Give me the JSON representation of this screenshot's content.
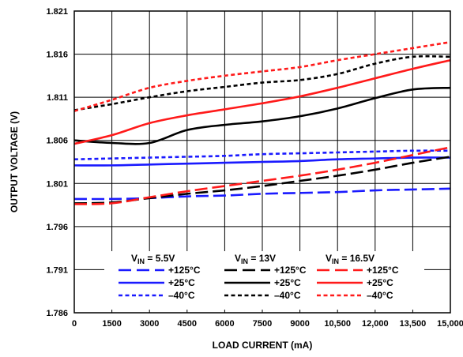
{
  "chart_data": {
    "type": "line",
    "xlabel": "LOAD CURRENT (mA)",
    "ylabel": "OUTPUT VOLTAGE (V)",
    "xlim": [
      0,
      15000
    ],
    "ylim": [
      1.786,
      1.821
    ],
    "x_ticks": [
      0,
      1500,
      3000,
      4500,
      6000,
      7500,
      9000,
      10500,
      12000,
      13500,
      15000
    ],
    "x_tick_labels": [
      "0",
      "1500",
      "3000",
      "4500",
      "6000",
      "7500",
      "9000",
      "10,500",
      "12,000",
      "13,500",
      "15,000"
    ],
    "y_ticks": [
      1.786,
      1.791,
      1.796,
      1.801,
      1.806,
      1.811,
      1.816,
      1.821
    ],
    "y_tick_labels": [
      "1.786",
      "1.791",
      "1.796",
      "1.801",
      "1.806",
      "1.811",
      "1.816",
      "1.821"
    ],
    "grid": true,
    "legend_position": "bottom-center",
    "legend_groups": [
      {
        "vin_prefix": "V",
        "vin_sub": "IN",
        "vin_suffix": " = 5.5V",
        "color": "#1a1aff"
      },
      {
        "vin_prefix": "V",
        "vin_sub": "IN",
        "vin_suffix": " = 13V",
        "color": "#000000"
      },
      {
        "vin_prefix": "V",
        "vin_sub": "IN",
        "vin_suffix": " = 16.5V",
        "color": "#ff1a1a"
      }
    ],
    "legend_temps": [
      "+125°C",
      "+25°C",
      "–40°C"
    ],
    "series": [
      {
        "group": 0,
        "temp": 0,
        "color": "#1a1aff",
        "dash": "long",
        "x": [
          0,
          1500,
          3000,
          4500,
          6000,
          7500,
          9000,
          10500,
          12000,
          13500,
          15000
        ],
        "y": [
          1.7992,
          1.7992,
          1.7993,
          1.7995,
          1.7996,
          1.7998,
          1.7999,
          1.8,
          1.8002,
          1.8003,
          1.8004
        ]
      },
      {
        "group": 0,
        "temp": 1,
        "color": "#1a1aff",
        "dash": "solid",
        "x": [
          0,
          1500,
          3000,
          4500,
          6000,
          7500,
          9000,
          10500,
          12000,
          13500,
          15000
        ],
        "y": [
          1.8031,
          1.8031,
          1.8032,
          1.8033,
          1.8034,
          1.8035,
          1.8036,
          1.8038,
          1.8039,
          1.804,
          1.804
        ]
      },
      {
        "group": 0,
        "temp": 2,
        "color": "#1a1aff",
        "dash": "short",
        "x": [
          0,
          1500,
          3000,
          4500,
          6000,
          7500,
          9000,
          10500,
          12000,
          13500,
          15000
        ],
        "y": [
          1.8038,
          1.8039,
          1.804,
          1.8041,
          1.8042,
          1.8044,
          1.8045,
          1.8046,
          1.8047,
          1.8048,
          1.8048
        ]
      },
      {
        "group": 1,
        "temp": 0,
        "color": "#000000",
        "dash": "long",
        "x": [
          0,
          1500,
          3000,
          4500,
          6000,
          7500,
          9000,
          10500,
          12000,
          13500,
          15000
        ],
        "y": [
          1.7987,
          1.7988,
          1.7993,
          1.7998,
          1.8002,
          1.8007,
          1.8013,
          1.8019,
          1.8026,
          1.8034,
          1.8041
        ]
      },
      {
        "group": 1,
        "temp": 1,
        "color": "#000000",
        "dash": "solid",
        "x": [
          0,
          1500,
          3000,
          4500,
          6000,
          7500,
          9000,
          10500,
          12000,
          13500,
          15000
        ],
        "y": [
          1.806,
          1.8057,
          1.8057,
          1.8072,
          1.8078,
          1.8082,
          1.8088,
          1.8097,
          1.8109,
          1.8119,
          1.8121
        ]
      },
      {
        "group": 1,
        "temp": 2,
        "color": "#000000",
        "dash": "short",
        "x": [
          0,
          1500,
          3000,
          4500,
          6000,
          7500,
          9000,
          10500,
          12000,
          13500,
          15000
        ],
        "y": [
          1.8095,
          1.8102,
          1.811,
          1.8117,
          1.8122,
          1.8127,
          1.813,
          1.8137,
          1.8149,
          1.8157,
          1.8157
        ]
      },
      {
        "group": 2,
        "temp": 0,
        "color": "#ff1a1a",
        "dash": "long",
        "x": [
          0,
          1500,
          3000,
          4500,
          6000,
          7500,
          9000,
          10500,
          12000,
          13500,
          15000
        ],
        "y": [
          1.7986,
          1.7987,
          1.7994,
          1.8001,
          1.8007,
          1.8013,
          1.8019,
          1.8026,
          1.8034,
          1.8043,
          1.8052
        ]
      },
      {
        "group": 2,
        "temp": 1,
        "color": "#ff1a1a",
        "dash": "solid",
        "x": [
          0,
          1500,
          3000,
          4500,
          6000,
          7500,
          9000,
          10500,
          12000,
          13500,
          15000
        ],
        "y": [
          1.8056,
          1.8066,
          1.808,
          1.8089,
          1.8096,
          1.8103,
          1.8111,
          1.8121,
          1.8132,
          1.8143,
          1.8153
        ]
      },
      {
        "group": 2,
        "temp": 2,
        "color": "#ff1a1a",
        "dash": "short",
        "x": [
          0,
          1500,
          3000,
          4500,
          6000,
          7500,
          9000,
          10500,
          12000,
          13500,
          15000
        ],
        "y": [
          1.8094,
          1.8107,
          1.8121,
          1.8129,
          1.8135,
          1.814,
          1.8145,
          1.8153,
          1.816,
          1.8167,
          1.8174
        ]
      }
    ]
  }
}
